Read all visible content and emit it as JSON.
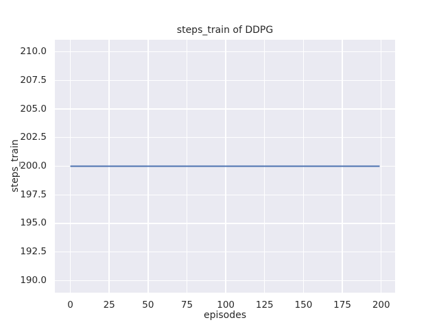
{
  "chart_data": {
    "type": "line",
    "title": "steps_train of DDPG",
    "xlabel": "episodes",
    "ylabel": "steps_train",
    "xlim": [
      -9.95,
      208.95
    ],
    "ylim": [
      188.95,
      211.05
    ],
    "x_ticks": [
      0,
      25,
      50,
      75,
      100,
      125,
      150,
      175,
      200
    ],
    "x_tick_labels": [
      "0",
      "25",
      "50",
      "75",
      "100",
      "125",
      "150",
      "175",
      "200"
    ],
    "y_ticks": [
      190.0,
      192.5,
      195.0,
      197.5,
      200.0,
      202.5,
      205.0,
      207.5,
      210.0
    ],
    "y_tick_labels": [
      "190.0",
      "192.5",
      "195.0",
      "197.5",
      "200.0",
      "202.5",
      "205.0",
      "207.5",
      "210.0"
    ],
    "grid": true,
    "legend": false,
    "series": [
      {
        "name": "steps_train",
        "color": "#4C72B0",
        "line_width": 2,
        "x": [
          0,
          199
        ],
        "y": [
          200,
          200
        ],
        "constant_value": 200,
        "episodes_span": [
          0,
          199
        ]
      }
    ],
    "styles": {
      "axes_background": "#EAEAF2",
      "grid_color": "#FFFFFF",
      "text_color": "#262626",
      "figure_background": "#FFFFFF"
    }
  }
}
